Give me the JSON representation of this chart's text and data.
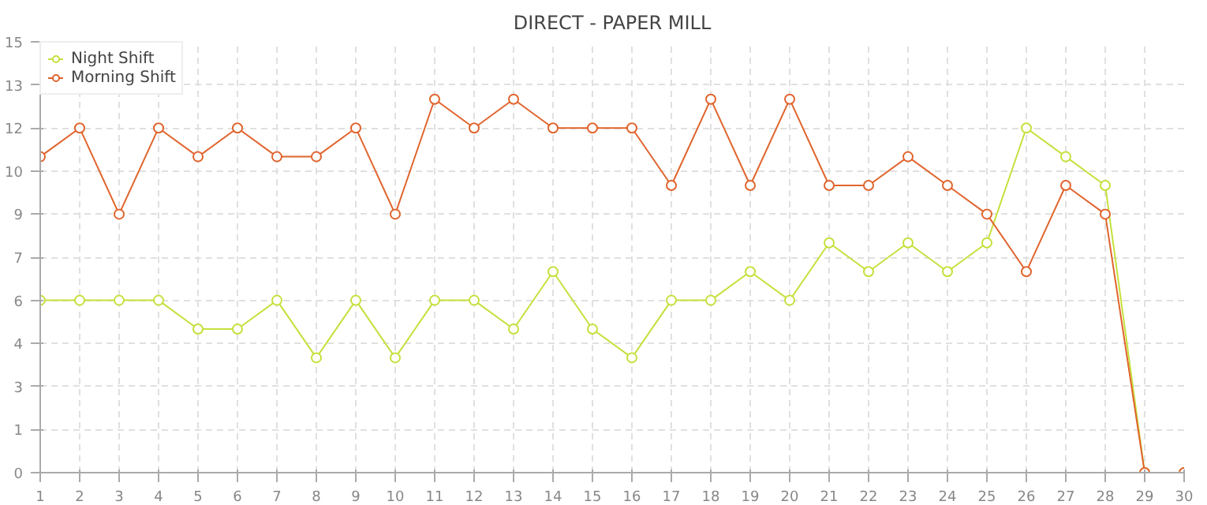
{
  "chart_data": {
    "type": "line",
    "title": "DIRECT - PAPER MILL",
    "x": [
      1,
      2,
      3,
      4,
      5,
      6,
      7,
      8,
      9,
      10,
      11,
      12,
      13,
      14,
      15,
      16,
      17,
      18,
      19,
      20,
      21,
      22,
      23,
      24,
      25,
      26,
      27,
      28,
      29,
      30
    ],
    "series": [
      {
        "name": "Night Shift",
        "color": "#c5e03c",
        "values": [
          6,
          6,
          6,
          6,
          5,
          5,
          6,
          4,
          6,
          4,
          6,
          6,
          5,
          7,
          5,
          4,
          6,
          6,
          7,
          6,
          8,
          7,
          8,
          7,
          8,
          12,
          11,
          10,
          0,
          0
        ]
      },
      {
        "name": "Morning Shift",
        "color": "#e0642d",
        "values": [
          11,
          12,
          9,
          12,
          11,
          12,
          11,
          11,
          12,
          9,
          13,
          12,
          13,
          12,
          12,
          12,
          10,
          13,
          10,
          13,
          10,
          10,
          11,
          10,
          9,
          7,
          10,
          9,
          0,
          0
        ]
      }
    ],
    "xlim": [
      1,
      30
    ],
    "xticks": [
      1,
      2,
      3,
      4,
      5,
      6,
      7,
      8,
      9,
      10,
      11,
      12,
      13,
      14,
      15,
      16,
      17,
      18,
      19,
      20,
      21,
      22,
      23,
      24,
      25,
      26,
      27,
      28,
      29,
      30
    ],
    "ylim": [
      0,
      15
    ],
    "yticks": [
      0,
      {
        "value": 1.5,
        "label": "1"
      },
      3,
      {
        "value": 4.5,
        "label": "4"
      },
      6,
      {
        "value": 7.5,
        "label": "7"
      },
      9,
      {
        "value": 10.5,
        "label": "10"
      },
      12,
      {
        "value": 13.5,
        "label": "13"
      },
      15
    ],
    "grid": true,
    "legend": "top left",
    "marker": "circle",
    "line_style": "solid"
  }
}
